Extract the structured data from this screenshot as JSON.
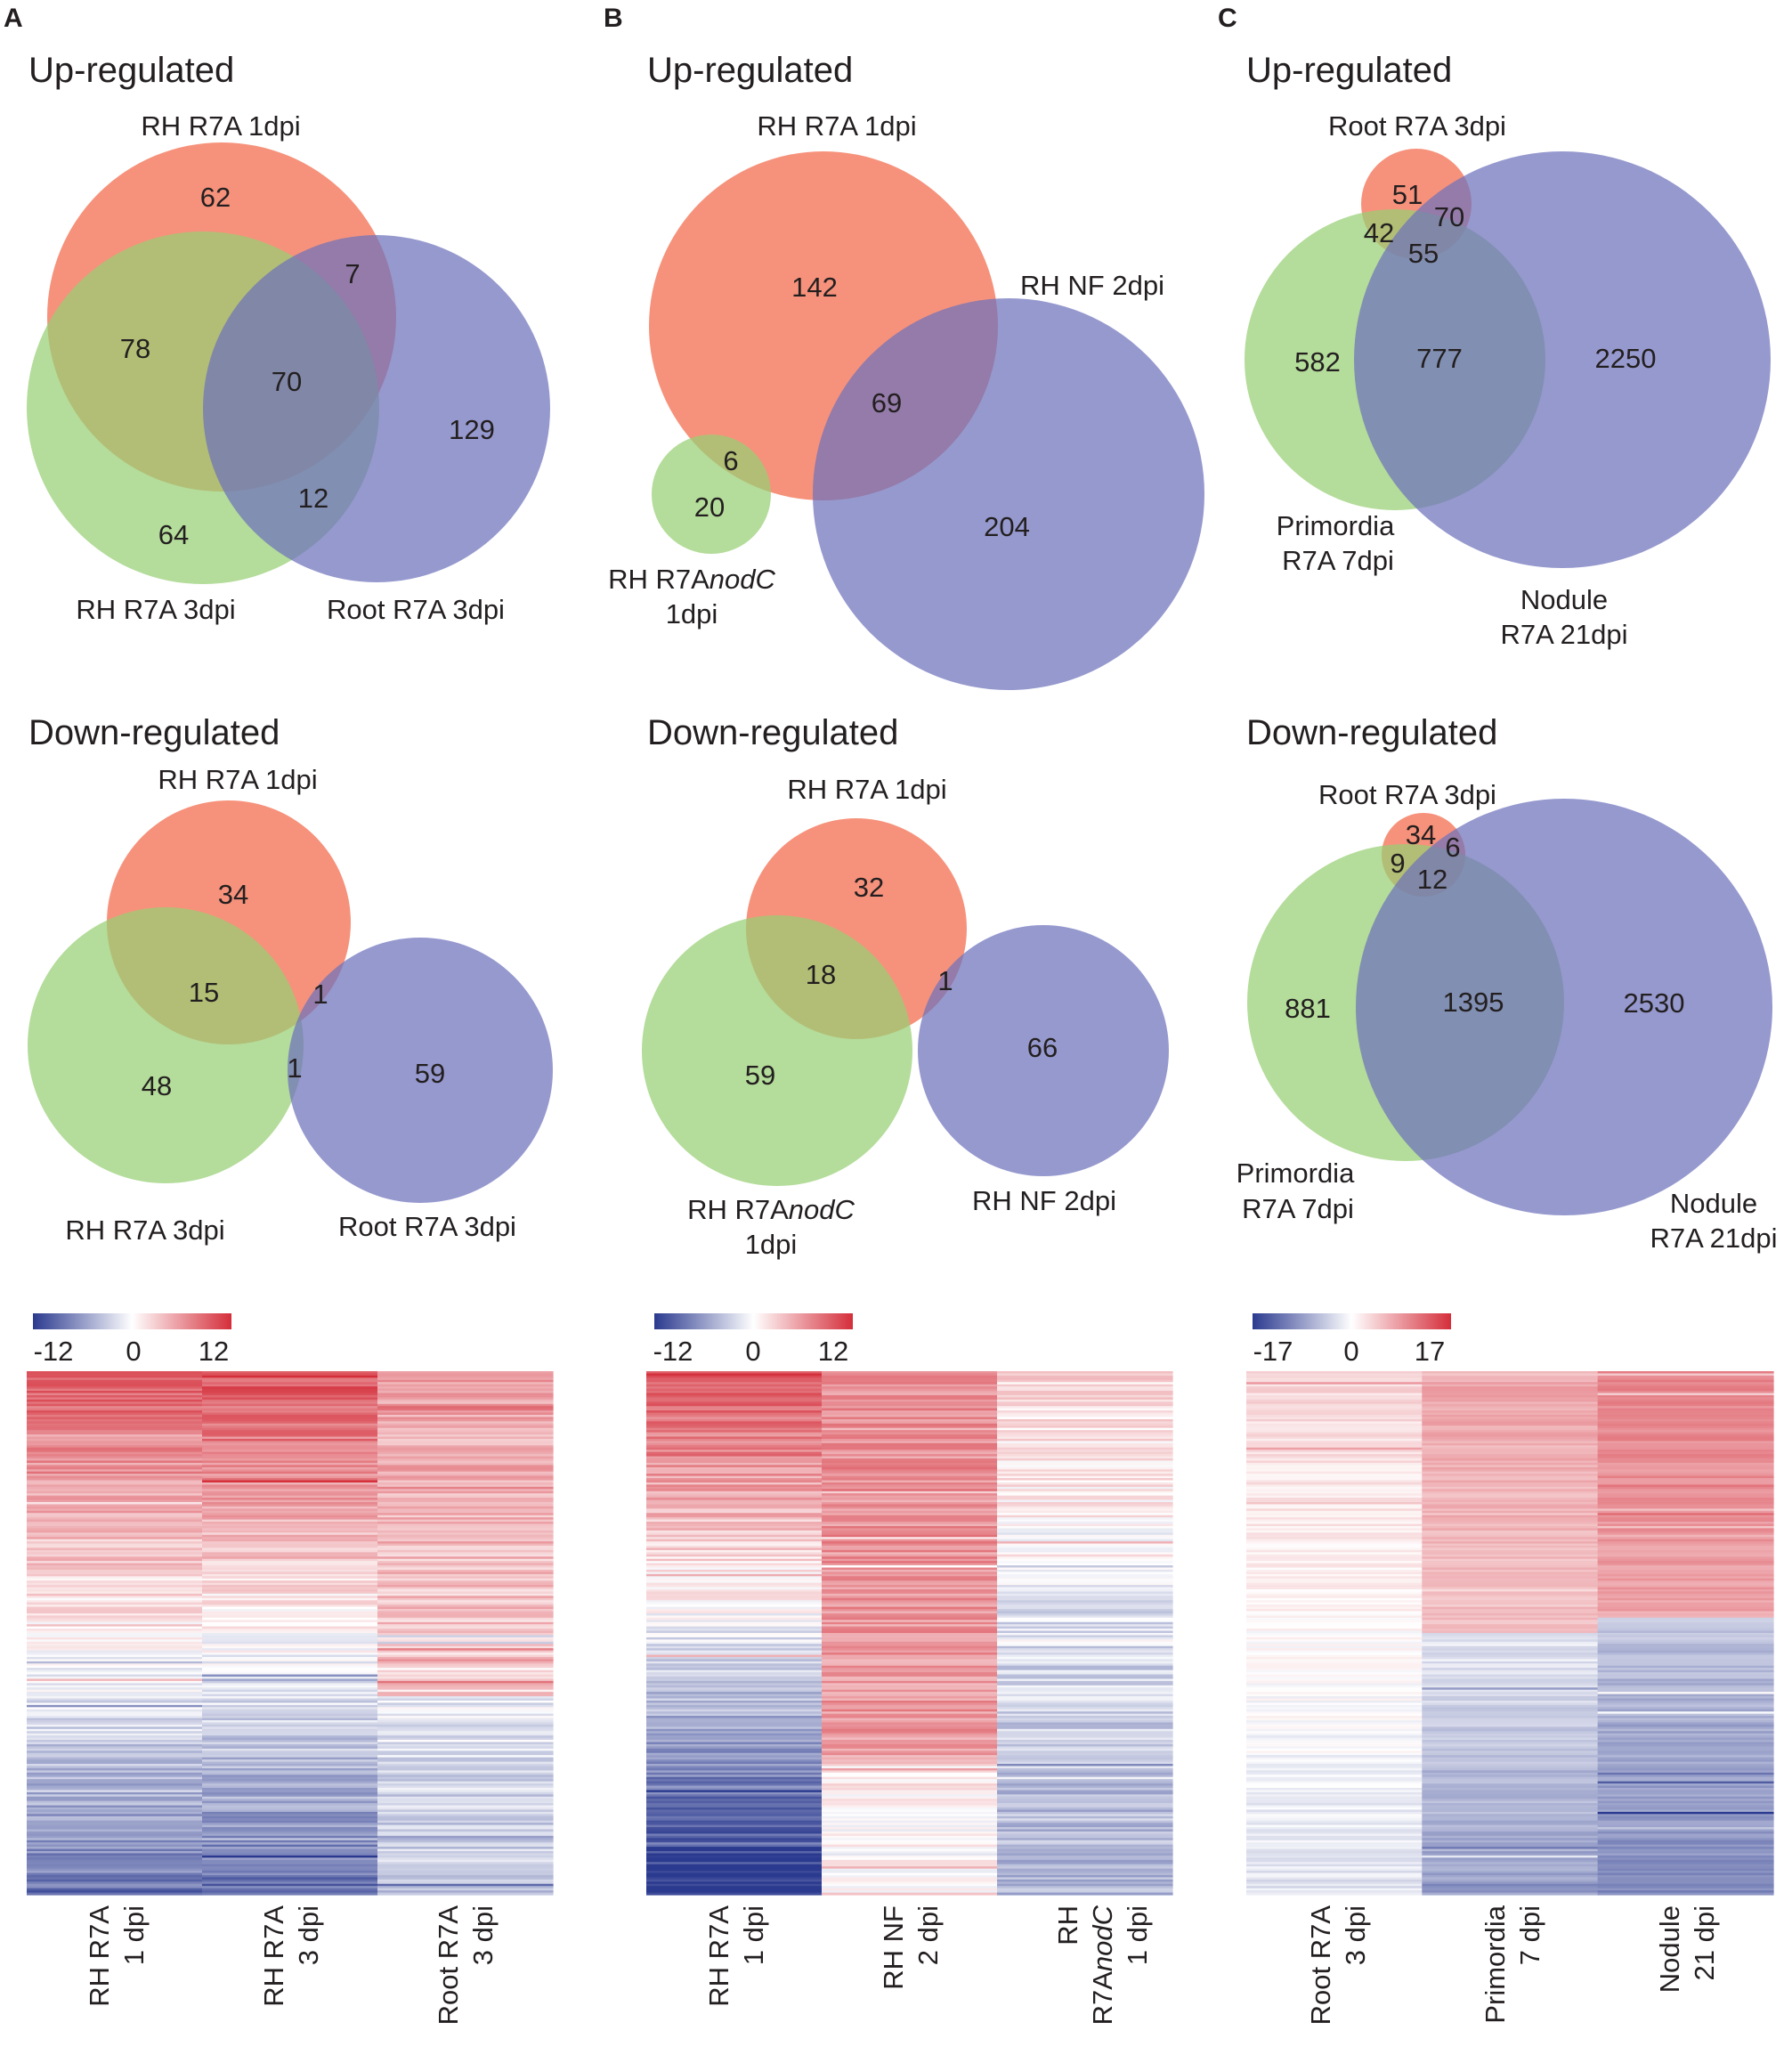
{
  "colors": {
    "red_set": "#f36d4f",
    "green_set": "#97cf73",
    "blue_set": "#6d72bb",
    "heat_neg": "#2b3a8f",
    "heat_mid": "#ffffff",
    "heat_pos": "#d42e3a"
  },
  "chart_data": [
    {
      "type": "venn",
      "panel": "A",
      "title": "Up-regulated",
      "sets": [
        "RH R7A 1dpi",
        "RH R7A 3dpi",
        "Root R7A 3dpi"
      ],
      "regions": [
        {
          "sets": [
            "RH R7A 1dpi"
          ],
          "value": 62
        },
        {
          "sets": [
            "RH R7A 1dpi",
            "Root R7A 3dpi"
          ],
          "value": 7
        },
        {
          "sets": [
            "RH R7A 1dpi",
            "RH R7A 3dpi"
          ],
          "value": 78
        },
        {
          "sets": [
            "RH R7A 1dpi",
            "RH R7A 3dpi",
            "Root R7A 3dpi"
          ],
          "value": 70
        },
        {
          "sets": [
            "Root R7A 3dpi"
          ],
          "value": 129
        },
        {
          "sets": [
            "RH R7A 3dpi",
            "Root R7A 3dpi"
          ],
          "value": 12
        },
        {
          "sets": [
            "RH R7A 3dpi"
          ],
          "value": 64
        }
      ]
    },
    {
      "type": "venn",
      "panel": "A",
      "title": "Down-regulated",
      "sets": [
        "RH R7A 1dpi",
        "RH R7A 3dpi",
        "Root R7A 3dpi"
      ],
      "regions": [
        {
          "sets": [
            "RH R7A 1dpi"
          ],
          "value": 34
        },
        {
          "sets": [
            "RH R7A 1dpi",
            "RH R7A 3dpi"
          ],
          "value": 15
        },
        {
          "sets": [
            "RH R7A 1dpi",
            "Root R7A 3dpi"
          ],
          "value": 1
        },
        {
          "sets": [
            "RH R7A 3dpi"
          ],
          "value": 48
        },
        {
          "sets": [
            "RH R7A 3dpi",
            "Root R7A 3dpi"
          ],
          "value": 1
        },
        {
          "sets": [
            "Root R7A 3dpi"
          ],
          "value": 59
        }
      ]
    },
    {
      "type": "heatmap",
      "panel": "A",
      "scale": {
        "min": -12,
        "mid": 0,
        "max": 12,
        "ticks": [
          "-12",
          "0",
          "12"
        ]
      },
      "columns": [
        {
          "line1": "RH R7A",
          "line2": "1 dpi"
        },
        {
          "line1": "RH R7A",
          "line2": "3 dpi"
        },
        {
          "line1": "Root R7A",
          "line2": "3 dpi"
        }
      ]
    },
    {
      "type": "venn",
      "panel": "B",
      "title": "Up-regulated",
      "sets": [
        "RH R7A 1dpi",
        "RH NF 2dpi",
        "RH R7AnodC 1dpi"
      ],
      "regions": [
        {
          "sets": [
            "RH R7A 1dpi"
          ],
          "value": 142
        },
        {
          "sets": [
            "RH R7A 1dpi",
            "RH NF 2dpi"
          ],
          "value": 69
        },
        {
          "sets": [
            "RH R7A 1dpi",
            "RH R7AnodC 1dpi"
          ],
          "value": 6
        },
        {
          "sets": [
            "RH R7AnodC 1dpi"
          ],
          "value": 20
        },
        {
          "sets": [
            "RH NF 2dpi"
          ],
          "value": 204
        }
      ]
    },
    {
      "type": "venn",
      "panel": "B",
      "title": "Down-regulated",
      "sets": [
        "RH R7A 1dpi",
        "RH R7AnodC 1dpi",
        "RH NF 2dpi"
      ],
      "regions": [
        {
          "sets": [
            "RH R7A 1dpi"
          ],
          "value": 32
        },
        {
          "sets": [
            "RH R7A 1dpi",
            "RH R7AnodC 1dpi"
          ],
          "value": 18
        },
        {
          "sets": [
            "RH R7A 1dpi",
            "RH NF 2dpi"
          ],
          "value": 1
        },
        {
          "sets": [
            "RH R7AnodC 1dpi"
          ],
          "value": 59
        },
        {
          "sets": [
            "RH NF 2dpi"
          ],
          "value": 66
        }
      ]
    },
    {
      "type": "heatmap",
      "panel": "B",
      "scale": {
        "min": -12,
        "mid": 0,
        "max": 12,
        "ticks": [
          "-12",
          "0",
          "12"
        ]
      },
      "columns": [
        {
          "line1": "RH R7A",
          "line2": "1 dpi"
        },
        {
          "line1": "RH NF",
          "line2": "2 dpi"
        },
        {
          "line1": "RH",
          "line2": "R7AnodC 1 dpi"
        }
      ]
    },
    {
      "type": "venn",
      "panel": "C",
      "title": "Up-regulated",
      "sets": [
        "Root R7A 3dpi",
        "Primordia R7A 7dpi",
        "Nodule R7A 21dpi"
      ],
      "regions": [
        {
          "sets": [
            "Root R7A 3dpi"
          ],
          "value": 51
        },
        {
          "sets": [
            "Root R7A 3dpi",
            "Nodule R7A 21dpi"
          ],
          "value": 70
        },
        {
          "sets": [
            "Root R7A 3dpi",
            "Primordia R7A 7dpi"
          ],
          "value": 42
        },
        {
          "sets": [
            "Root R7A 3dpi",
            "Primordia R7A 7dpi",
            "Nodule R7A 21dpi"
          ],
          "value": 55
        },
        {
          "sets": [
            "Primordia R7A 7dpi"
          ],
          "value": 582
        },
        {
          "sets": [
            "Primordia R7A 7dpi",
            "Nodule R7A 21dpi"
          ],
          "value": 777
        },
        {
          "sets": [
            "Nodule R7A 21dpi"
          ],
          "value": 2250
        }
      ]
    },
    {
      "type": "venn",
      "panel": "C",
      "title": "Down-regulated",
      "sets": [
        "Root R7A 3dpi",
        "Primordia R7A 7dpi",
        "Nodule R7A 21dpi"
      ],
      "regions": [
        {
          "sets": [
            "Root R7A 3dpi"
          ],
          "value": 34
        },
        {
          "sets": [
            "Root R7A 3dpi",
            "Primordia R7A 7dpi"
          ],
          "value": 9
        },
        {
          "sets": [
            "Root R7A 3dpi",
            "Nodule R7A 21dpi"
          ],
          "value": 6
        },
        {
          "sets": [
            "Root R7A 3dpi",
            "Primordia R7A 7dpi",
            "Nodule R7A 21dpi"
          ],
          "value": 12
        },
        {
          "sets": [
            "Primordia R7A 7dpi"
          ],
          "value": 881
        },
        {
          "sets": [
            "Primordia R7A 7dpi",
            "Nodule R7A 21dpi"
          ],
          "value": 1395
        },
        {
          "sets": [
            "Nodule R7A 21dpi"
          ],
          "value": 2530
        }
      ]
    },
    {
      "type": "heatmap",
      "panel": "C",
      "scale": {
        "min": -17,
        "mid": 0,
        "max": 17,
        "ticks": [
          "-17",
          "0",
          "17"
        ]
      },
      "columns": [
        {
          "line1": "Root R7A",
          "line2": "3 dpi"
        },
        {
          "line1": "Primordia",
          "line2": "7 dpi"
        },
        {
          "line1": "Nodule",
          "line2": "21 dpi"
        }
      ]
    }
  ],
  "panels": {
    "A": {
      "letter": "A",
      "up": {
        "title": "Up-regulated",
        "set1": "RH R7A 1dpi",
        "set2": "RH R7A 3dpi",
        "set3": "Root R7A 3dpi",
        "v62": "62",
        "v7": "7",
        "v78": "78",
        "v70": "70",
        "v129": "129",
        "v12": "12",
        "v64": "64"
      },
      "down": {
        "title": "Down-regulated",
        "set1": "RH R7A 1dpi",
        "set2": "RH R7A 3dpi",
        "set3": "Root R7A 3dpi",
        "v34": "34",
        "v15": "15",
        "v1a": "1",
        "v48": "48",
        "v1b": "1",
        "v59": "59"
      },
      "heat": {
        "tmin": "-12",
        "tmid": "0",
        "tmax": "12",
        "c1a": "RH R7A",
        "c1b": "1 dpi",
        "c2a": "RH R7A",
        "c2b": "3 dpi",
        "c3a": "Root R7A",
        "c3b": "3 dpi"
      }
    },
    "B": {
      "letter": "B",
      "up": {
        "title": "Up-regulated",
        "set1": "RH R7A 1dpi",
        "set2": "RH NF 2dpi",
        "set3a": "RH R7A",
        "set3b": "nodC",
        "set3c": "1dpi",
        "v142": "142",
        "v69": "69",
        "v6": "6",
        "v20": "20",
        "v204": "204"
      },
      "down": {
        "title": "Down-regulated",
        "set1": "RH R7A 1dpi",
        "set2a": "RH R7A",
        "set2b": "nodC",
        "set2c": "1dpi",
        "set3": "RH NF 2dpi",
        "v32": "32",
        "v18": "18",
        "v1": "1",
        "v59": "59",
        "v66": "66"
      },
      "heat": {
        "tmin": "-12",
        "tmid": "0",
        "tmax": "12",
        "c1a": "RH R7A",
        "c1b": "1 dpi",
        "c2a": "RH NF",
        "c2b": "2 dpi",
        "c3a": "RH",
        "c3b1": "R7A",
        "c3b2": "nodC",
        "c3c": "1 dpi"
      }
    },
    "C": {
      "letter": "C",
      "up": {
        "title": "Up-regulated",
        "set1": "Root R7A 3dpi",
        "set2a": "Primordia",
        "set2b": "R7A 7dpi",
        "set3a": "Nodule",
        "set3b": "R7A 21dpi",
        "v51": "51",
        "v70": "70",
        "v42": "42",
        "v55": "55",
        "v582": "582",
        "v777": "777",
        "v2250": "2250"
      },
      "down": {
        "title": "Down-regulated",
        "set1": "Root R7A 3dpi",
        "set2a": "Primordia",
        "set2b": "R7A 7dpi",
        "set3a": "Nodule",
        "set3b": "R7A 21dpi",
        "v34": "34",
        "v9": "9",
        "v6": "6",
        "v12": "12",
        "v881": "881",
        "v1395": "1395",
        "v2530": "2530"
      },
      "heat": {
        "tmin": "-17",
        "tmid": "0",
        "tmax": "17",
        "c1a": "Root R7A",
        "c1b": "3 dpi",
        "c2a": "Primordia",
        "c2b": "7 dpi",
        "c3a": "Nodule",
        "c3b": "21 dpi"
      }
    }
  }
}
